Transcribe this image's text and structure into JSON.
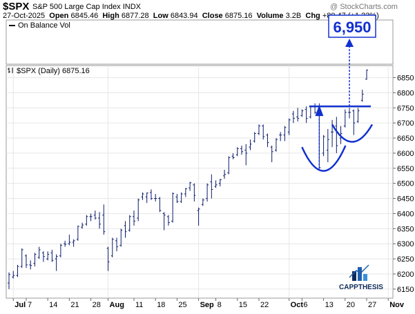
{
  "header": {
    "symbol": "$SPX",
    "name": "S&P 500 Large Cap Index",
    "exchange": "INDX",
    "watermark": "@ StockCharts.com",
    "date": "27-Oct-2025",
    "open_label": "Open",
    "open": "6845.46",
    "high_label": "High",
    "high": "6877.28",
    "low_label": "Low",
    "low": "6843.94",
    "close_label": "Close",
    "close": "6875.16",
    "volume_label": "Volume",
    "volume": "3.2B",
    "chg_label": "Chg",
    "chg": "+80.47 (+1.23%)"
  },
  "indicator_panel": {
    "legend": "On Balance Vol"
  },
  "price_panel": {
    "legend": "$SPX (Daily) 6875.16"
  },
  "annotation": {
    "target": "6,950",
    "target_value": 6950,
    "neckline_value": 6755,
    "color": "#1030d0"
  },
  "logo": {
    "text": "CAPPTHESIS"
  },
  "chart_data": {
    "type": "ohlc",
    "title": "$SPX (Daily) 6875.16",
    "ylim": [
      6120,
      6890
    ],
    "y_ticks": [
      6150,
      6200,
      6250,
      6300,
      6350,
      6400,
      6450,
      6500,
      6550,
      6600,
      6650,
      6700,
      6750,
      6800,
      6850
    ],
    "y_tick_labels": [
      "6150",
      "6200",
      "6250",
      "6300",
      "6350",
      "6400",
      "6450",
      "6500",
      "6550",
      "6600",
      "6650",
      "6700",
      "6750",
      "6800",
      "6850"
    ],
    "x_tick_labels": [
      {
        "label": "Jul",
        "date": "2025-07-01",
        "major": true
      },
      {
        "label": "7",
        "date": "2025-07-07",
        "major": false
      },
      {
        "label": "14",
        "date": "2025-07-14",
        "major": false
      },
      {
        "label": "21",
        "date": "2025-07-21",
        "major": false
      },
      {
        "label": "28",
        "date": "2025-07-28",
        "major": false
      },
      {
        "label": "Aug",
        "date": "2025-08-01",
        "major": true
      },
      {
        "label": "11",
        "date": "2025-08-11",
        "major": false
      },
      {
        "label": "18",
        "date": "2025-08-18",
        "major": false
      },
      {
        "label": "25",
        "date": "2025-08-25",
        "major": false
      },
      {
        "label": "Sep",
        "date": "2025-09-02",
        "major": true
      },
      {
        "label": "8",
        "date": "2025-09-08",
        "major": false
      },
      {
        "label": "15",
        "date": "2025-09-15",
        "major": false
      },
      {
        "label": "22",
        "date": "2025-09-22",
        "major": false
      },
      {
        "label": "Oct",
        "date": "2025-10-01",
        "major": true
      },
      {
        "label": "6",
        "date": "2025-10-06",
        "major": false
      },
      {
        "label": "13",
        "date": "2025-10-13",
        "major": false
      },
      {
        "label": "20",
        "date": "2025-10-20",
        "major": false
      },
      {
        "label": "27",
        "date": "2025-10-27",
        "major": false
      },
      {
        "label": "Nov",
        "date": "2025-11-03",
        "major": true
      }
    ],
    "grid": true,
    "series": [
      {
        "bars": [
          {
            "date": "2025-06-30",
            "o": 6170,
            "h": 6205,
            "l": 6150,
            "c": 6198
          },
          {
            "date": "2025-07-01",
            "o": 6190,
            "h": 6210,
            "l": 6185,
            "c": 6195
          },
          {
            "date": "2025-07-02",
            "o": 6195,
            "h": 6230,
            "l": 6190,
            "c": 6225
          },
          {
            "date": "2025-07-03",
            "o": 6225,
            "h": 6285,
            "l": 6220,
            "c": 6280
          },
          {
            "date": "2025-07-07",
            "o": 6260,
            "h": 6265,
            "l": 6220,
            "c": 6230
          },
          {
            "date": "2025-07-08",
            "o": 6230,
            "h": 6245,
            "l": 6215,
            "c": 6228
          },
          {
            "date": "2025-07-09",
            "o": 6235,
            "h": 6270,
            "l": 6225,
            "c": 6265
          },
          {
            "date": "2025-07-10",
            "o": 6255,
            "h": 6290,
            "l": 6250,
            "c": 6280
          },
          {
            "date": "2025-07-11",
            "o": 6270,
            "h": 6275,
            "l": 6240,
            "c": 6258
          },
          {
            "date": "2025-07-14",
            "o": 6250,
            "h": 6275,
            "l": 6245,
            "c": 6265
          },
          {
            "date": "2025-07-15",
            "o": 6270,
            "h": 6280,
            "l": 6240,
            "c": 6245
          },
          {
            "date": "2025-07-16",
            "o": 6250,
            "h": 6265,
            "l": 6210,
            "c": 6258
          },
          {
            "date": "2025-07-17",
            "o": 6260,
            "h": 6300,
            "l": 6255,
            "c": 6295
          },
          {
            "date": "2025-07-18",
            "o": 6300,
            "h": 6310,
            "l": 6290,
            "c": 6298
          },
          {
            "date": "2025-07-21",
            "o": 6300,
            "h": 6330,
            "l": 6295,
            "c": 6305
          },
          {
            "date": "2025-07-22",
            "o": 6305,
            "h": 6315,
            "l": 6290,
            "c": 6310
          },
          {
            "date": "2025-07-23",
            "o": 6315,
            "h": 6360,
            "l": 6310,
            "c": 6358
          },
          {
            "date": "2025-07-24",
            "o": 6355,
            "h": 6370,
            "l": 6350,
            "c": 6362
          },
          {
            "date": "2025-07-25",
            "o": 6365,
            "h": 6395,
            "l": 6360,
            "c": 6390
          },
          {
            "date": "2025-07-28",
            "o": 6390,
            "h": 6400,
            "l": 6375,
            "c": 6390
          },
          {
            "date": "2025-07-29",
            "o": 6395,
            "h": 6410,
            "l": 6380,
            "c": 6385
          },
          {
            "date": "2025-07-30",
            "o": 6385,
            "h": 6405,
            "l": 6350,
            "c": 6365
          },
          {
            "date": "2025-07-31",
            "o": 6395,
            "h": 6430,
            "l": 6330,
            "c": 6340
          },
          {
            "date": "2025-08-01",
            "o": 6285,
            "h": 6290,
            "l": 6210,
            "c": 6240
          },
          {
            "date": "2025-08-04",
            "o": 6260,
            "h": 6320,
            "l": 6255,
            "c": 6315
          },
          {
            "date": "2025-08-05",
            "o": 6310,
            "h": 6320,
            "l": 6275,
            "c": 6290
          },
          {
            "date": "2025-08-06",
            "o": 6295,
            "h": 6350,
            "l": 6290,
            "c": 6345
          },
          {
            "date": "2025-08-07",
            "o": 6360,
            "h": 6375,
            "l": 6320,
            "c": 6340
          },
          {
            "date": "2025-08-08",
            "o": 6345,
            "h": 6395,
            "l": 6340,
            "c": 6390
          },
          {
            "date": "2025-08-11",
            "o": 6390,
            "h": 6410,
            "l": 6360,
            "c": 6375
          },
          {
            "date": "2025-08-12",
            "o": 6385,
            "h": 6450,
            "l": 6375,
            "c": 6445
          },
          {
            "date": "2025-08-13",
            "o": 6455,
            "h": 6470,
            "l": 6445,
            "c": 6465
          },
          {
            "date": "2025-08-14",
            "o": 6455,
            "h": 6470,
            "l": 6435,
            "c": 6468
          },
          {
            "date": "2025-08-15",
            "o": 6470,
            "h": 6480,
            "l": 6445,
            "c": 6450
          },
          {
            "date": "2025-08-18",
            "o": 6450,
            "h": 6465,
            "l": 6440,
            "c": 6450
          },
          {
            "date": "2025-08-19",
            "o": 6450,
            "h": 6455,
            "l": 6405,
            "c": 6410
          },
          {
            "date": "2025-08-20",
            "o": 6400,
            "h": 6405,
            "l": 6345,
            "c": 6395
          },
          {
            "date": "2025-08-21",
            "o": 6390,
            "h": 6395,
            "l": 6360,
            "c": 6370
          },
          {
            "date": "2025-08-22",
            "o": 6375,
            "h": 6470,
            "l": 6370,
            "c": 6466
          },
          {
            "date": "2025-08-25",
            "o": 6455,
            "h": 6465,
            "l": 6435,
            "c": 6440
          },
          {
            "date": "2025-08-26",
            "o": 6440,
            "h": 6470,
            "l": 6435,
            "c": 6465
          },
          {
            "date": "2025-08-27",
            "o": 6465,
            "h": 6485,
            "l": 6455,
            "c": 6482
          },
          {
            "date": "2025-08-28",
            "o": 6485,
            "h": 6505,
            "l": 6475,
            "c": 6502
          },
          {
            "date": "2025-08-29",
            "o": 6495,
            "h": 6500,
            "l": 6440,
            "c": 6460
          },
          {
            "date": "2025-09-02",
            "o": 6410,
            "h": 6420,
            "l": 6360,
            "c": 6415
          },
          {
            "date": "2025-09-03",
            "o": 6430,
            "h": 6450,
            "l": 6425,
            "c": 6445
          },
          {
            "date": "2025-09-04",
            "o": 6450,
            "h": 6500,
            "l": 6440,
            "c": 6495
          },
          {
            "date": "2025-09-05",
            "o": 6505,
            "h": 6530,
            "l": 6450,
            "c": 6480
          },
          {
            "date": "2025-09-08",
            "o": 6490,
            "h": 6510,
            "l": 6485,
            "c": 6495
          },
          {
            "date": "2025-09-09",
            "o": 6500,
            "h": 6515,
            "l": 6490,
            "c": 6512
          },
          {
            "date": "2025-09-10",
            "o": 6525,
            "h": 6545,
            "l": 6515,
            "c": 6530
          },
          {
            "date": "2025-09-11",
            "o": 6535,
            "h": 6590,
            "l": 6530,
            "c": 6585
          },
          {
            "date": "2025-09-12",
            "o": 6590,
            "h": 6600,
            "l": 6580,
            "c": 6585
          },
          {
            "date": "2025-09-15",
            "o": 6595,
            "h": 6620,
            "l": 6590,
            "c": 6615
          },
          {
            "date": "2025-09-16",
            "o": 6615,
            "h": 6625,
            "l": 6595,
            "c": 6605
          },
          {
            "date": "2025-09-17",
            "o": 6610,
            "h": 6630,
            "l": 6560,
            "c": 6600
          },
          {
            "date": "2025-09-18",
            "o": 6620,
            "h": 6645,
            "l": 6610,
            "c": 6630
          },
          {
            "date": "2025-09-19",
            "o": 6640,
            "h": 6670,
            "l": 6635,
            "c": 6665
          },
          {
            "date": "2025-09-22",
            "o": 6665,
            "h": 6695,
            "l": 6660,
            "c": 6690
          },
          {
            "date": "2025-09-23",
            "o": 6690,
            "h": 6695,
            "l": 6645,
            "c": 6655
          },
          {
            "date": "2025-09-24",
            "o": 6660,
            "h": 6665,
            "l": 6620,
            "c": 6635
          },
          {
            "date": "2025-09-25",
            "o": 6620,
            "h": 6625,
            "l": 6570,
            "c": 6605
          },
          {
            "date": "2025-09-26",
            "o": 6610,
            "h": 6650,
            "l": 6605,
            "c": 6645
          },
          {
            "date": "2025-09-29",
            "o": 6660,
            "h": 6670,
            "l": 6640,
            "c": 6660
          },
          {
            "date": "2025-09-30",
            "o": 6660,
            "h": 6690,
            "l": 6640,
            "c": 6685
          },
          {
            "date": "2025-10-01",
            "o": 6670,
            "h": 6715,
            "l": 6660,
            "c": 6710
          },
          {
            "date": "2025-10-02",
            "o": 6730,
            "h": 6740,
            "l": 6700,
            "c": 6715
          },
          {
            "date": "2025-10-03",
            "o": 6720,
            "h": 6750,
            "l": 6705,
            "c": 6715
          },
          {
            "date": "2025-10-06",
            "o": 6725,
            "h": 6745,
            "l": 6720,
            "c": 6740
          },
          {
            "date": "2025-10-07",
            "o": 6745,
            "h": 6755,
            "l": 6700,
            "c": 6715
          },
          {
            "date": "2025-10-08",
            "o": 6720,
            "h": 6755,
            "l": 6715,
            "c": 6755
          },
          {
            "date": "2025-10-09",
            "o": 6755,
            "h": 6765,
            "l": 6730,
            "c": 6735
          },
          {
            "date": "2025-10-10",
            "o": 6740,
            "h": 6765,
            "l": 6550,
            "c": 6552
          },
          {
            "date": "2025-10-13",
            "o": 6600,
            "h": 6660,
            "l": 6590,
            "c": 6655
          },
          {
            "date": "2025-10-14",
            "o": 6610,
            "h": 6680,
            "l": 6570,
            "c": 6645
          },
          {
            "date": "2025-10-15",
            "o": 6670,
            "h": 6710,
            "l": 6620,
            "c": 6670
          },
          {
            "date": "2025-10-16",
            "o": 6690,
            "h": 6720,
            "l": 6600,
            "c": 6625
          },
          {
            "date": "2025-10-17",
            "o": 6650,
            "h": 6690,
            "l": 6630,
            "c": 6665
          },
          {
            "date": "2025-10-20",
            "o": 6690,
            "h": 6745,
            "l": 6685,
            "c": 6735
          },
          {
            "date": "2025-10-21",
            "o": 6735,
            "h": 6750,
            "l": 6715,
            "c": 6735
          },
          {
            "date": "2025-10-22",
            "o": 6740,
            "h": 6745,
            "l": 6660,
            "c": 6700
          },
          {
            "date": "2025-10-23",
            "o": 6705,
            "h": 6750,
            "l": 6700,
            "c": 6740
          },
          {
            "date": "2025-10-24",
            "o": 6775,
            "h": 6810,
            "l": 6770,
            "c": 6795
          },
          {
            "date": "2025-10-27",
            "o": 6845,
            "h": 6877,
            "l": 6843,
            "c": 6875
          }
        ]
      }
    ]
  }
}
